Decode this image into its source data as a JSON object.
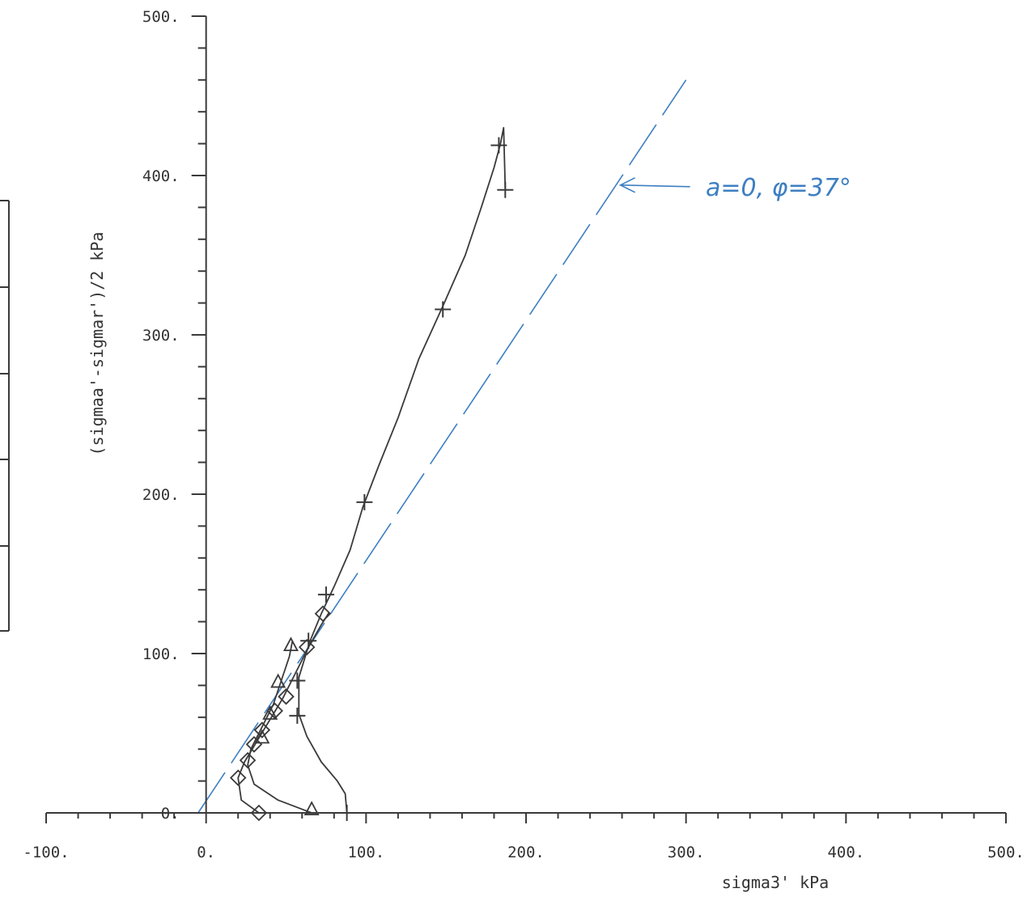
{
  "chart_data": {
    "type": "scatter",
    "title": "",
    "xlabel": "sigma3' kPa",
    "ylabel": "(sigmaa'-sigmar')/2 kPa",
    "xlim": [
      -100,
      500
    ],
    "ylim": [
      0,
      500
    ],
    "x_ticks": [
      "-100.",
      "0.",
      "100.",
      "200.",
      "300.",
      "400.",
      "500."
    ],
    "y_ticks": [
      "0.",
      "100.",
      "200.",
      "300.",
      "400.",
      "500."
    ],
    "grid": false,
    "colors": {
      "ink": "#3a3a3a",
      "annotation": "#3d7fc2"
    },
    "series": [
      {
        "marker": "plus",
        "line": [
          [
            88,
            0
          ],
          [
            87,
            12
          ],
          [
            82,
            20
          ],
          [
            72,
            32
          ],
          [
            63,
            48
          ],
          [
            58,
            62
          ],
          [
            58,
            85
          ],
          [
            65,
            108
          ],
          [
            72,
            125
          ],
          [
            80,
            142
          ],
          [
            90,
            165
          ],
          [
            98,
            192
          ],
          [
            108,
            218
          ],
          [
            120,
            248
          ],
          [
            133,
            285
          ],
          [
            148,
            318
          ],
          [
            162,
            350
          ],
          [
            172,
            380
          ],
          [
            180,
            405
          ],
          [
            184,
            420
          ],
          [
            186,
            430
          ],
          [
            187,
            392
          ]
        ],
        "markers": [
          [
            88,
            0
          ],
          [
            57,
            61
          ],
          [
            57,
            83
          ],
          [
            64,
            108
          ],
          [
            75,
            137
          ],
          [
            99,
            195
          ],
          [
            148,
            316
          ],
          [
            183,
            419
          ],
          [
            187,
            391
          ]
        ]
      },
      {
        "marker": "diamond",
        "line": [
          [
            33,
            0
          ],
          [
            22,
            8
          ],
          [
            20,
            22
          ],
          [
            24,
            32
          ],
          [
            30,
            42
          ],
          [
            36,
            52
          ],
          [
            42,
            62
          ],
          [
            48,
            72
          ],
          [
            56,
            88
          ],
          [
            64,
            104
          ],
          [
            72,
            118
          ],
          [
            77,
            126
          ]
        ],
        "markers": [
          [
            33,
            0
          ],
          [
            20,
            22
          ],
          [
            26,
            33
          ],
          [
            30,
            43
          ],
          [
            35,
            52
          ],
          [
            43,
            64
          ],
          [
            50,
            73
          ],
          [
            63,
            104
          ],
          [
            73,
            125
          ]
        ]
      },
      {
        "marker": "triangle",
        "line": [
          [
            66,
            0
          ],
          [
            45,
            8
          ],
          [
            30,
            18
          ],
          [
            26,
            30
          ],
          [
            28,
            40
          ],
          [
            33,
            50
          ],
          [
            38,
            60
          ],
          [
            42,
            68
          ],
          [
            46,
            80
          ],
          [
            52,
            98
          ],
          [
            54,
            108
          ]
        ],
        "markers": [
          [
            66,
            2
          ],
          [
            35,
            47
          ],
          [
            40,
            62
          ],
          [
            45,
            82
          ],
          [
            53,
            105
          ]
        ]
      }
    ],
    "annotation": {
      "text": "a=0, φ=37°",
      "failure_line": {
        "from": [
          -5,
          0
        ],
        "to": [
          300,
          460
        ]
      },
      "arrow_points_to": [
        258,
        394
      ]
    }
  }
}
